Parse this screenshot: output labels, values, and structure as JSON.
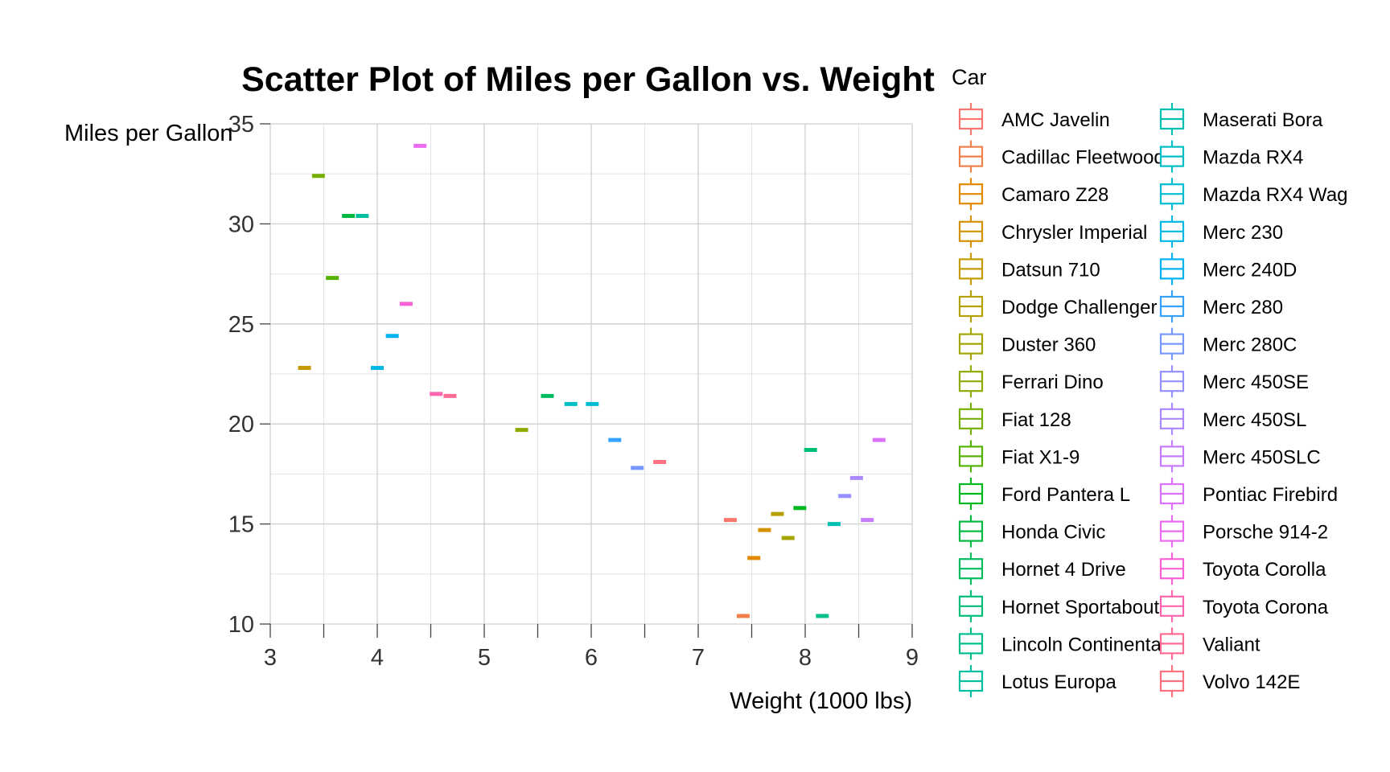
{
  "chart_data": {
    "type": "scatter",
    "title": "Scatter Plot of Miles per Gallon vs. Weight",
    "xlabel": "Weight (1000 lbs)",
    "ylabel": "Miles per Gallon",
    "xlim": [
      3,
      9
    ],
    "ylim": [
      10,
      35
    ],
    "xticks": [
      3,
      4,
      5,
      6,
      7,
      8,
      9
    ],
    "yticks": [
      10,
      15,
      20,
      25,
      30,
      35
    ],
    "grid": true,
    "legend_title": "Car",
    "legend_position": "right",
    "points": [
      {
        "name": "AMC Javelin",
        "x": 7.3,
        "y": 15.2,
        "color": "#F8766D"
      },
      {
        "name": "Cadillac Fleetwood",
        "x": 7.42,
        "y": 10.4,
        "color": "#F07F4A"
      },
      {
        "name": "Camaro Z28",
        "x": 7.52,
        "y": 13.3,
        "color": "#E18A00"
      },
      {
        "name": "Chrysler Imperial",
        "x": 7.62,
        "y": 14.7,
        "color": "#D49200"
      },
      {
        "name": "Datsun 710",
        "x": 3.32,
        "y": 22.8,
        "color": "#C49A00"
      },
      {
        "name": "Dodge Challenger",
        "x": 7.74,
        "y": 15.5,
        "color": "#B4A000"
      },
      {
        "name": "Duster 360",
        "x": 7.84,
        "y": 14.3,
        "color": "#A3A500"
      },
      {
        "name": "Ferrari Dino",
        "x": 5.35,
        "y": 19.7,
        "color": "#8FAA00"
      },
      {
        "name": "Fiat 128",
        "x": 3.45,
        "y": 32.4,
        "color": "#77AF00"
      },
      {
        "name": "Fiat X1-9",
        "x": 3.58,
        "y": 27.3,
        "color": "#55B300"
      },
      {
        "name": "Ford Pantera L",
        "x": 7.95,
        "y": 15.8,
        "color": "#00B81F"
      },
      {
        "name": "Honda Civic",
        "x": 3.73,
        "y": 30.4,
        "color": "#00BA42"
      },
      {
        "name": "Hornet 4 Drive",
        "x": 5.59,
        "y": 21.4,
        "color": "#00BC5E"
      },
      {
        "name": "Hornet Sportabout",
        "x": 8.05,
        "y": 18.7,
        "color": "#00BE77"
      },
      {
        "name": "Lincoln Continental",
        "x": 8.16,
        "y": 10.4,
        "color": "#00BF8C"
      },
      {
        "name": "Lotus Europa",
        "x": 3.86,
        "y": 30.4,
        "color": "#00C0A0"
      },
      {
        "name": "Maserati Bora",
        "x": 8.27,
        "y": 15.0,
        "color": "#00C0B3"
      },
      {
        "name": "Mazda RX4",
        "x": 5.81,
        "y": 21.0,
        "color": "#00BFC4"
      },
      {
        "name": "Mazda RX4 Wag",
        "x": 6.01,
        "y": 21.0,
        "color": "#00BDD4"
      },
      {
        "name": "Merc 230",
        "x": 4.0,
        "y": 22.8,
        "color": "#00B8E3"
      },
      {
        "name": "Merc 240D",
        "x": 4.14,
        "y": 24.4,
        "color": "#00B2F0"
      },
      {
        "name": "Merc 280",
        "x": 6.22,
        "y": 19.2,
        "color": "#35A2FF"
      },
      {
        "name": "Merc 280C",
        "x": 6.43,
        "y": 17.8,
        "color": "#7998FF"
      },
      {
        "name": "Merc 450SE",
        "x": 8.37,
        "y": 16.4,
        "color": "#9590FF"
      },
      {
        "name": "Merc 450SL",
        "x": 8.48,
        "y": 17.3,
        "color": "#AC88FF"
      },
      {
        "name": "Merc 450SLC",
        "x": 8.58,
        "y": 15.2,
        "color": "#C77CFF"
      },
      {
        "name": "Pontiac Firebird",
        "x": 8.69,
        "y": 19.2,
        "color": "#DC71FA"
      },
      {
        "name": "Porsche 914-2",
        "x": 4.4,
        "y": 33.9,
        "color": "#EA6AF0"
      },
      {
        "name": "Toyota Corolla",
        "x": 4.27,
        "y": 26.0,
        "color": "#FB61D7"
      },
      {
        "name": "Toyota Corona",
        "x": 4.55,
        "y": 21.5,
        "color": "#FF64B0"
      },
      {
        "name": "Valiant",
        "x": 4.68,
        "y": 21.4,
        "color": "#FF6B93"
      },
      {
        "name": "Volvo 142E",
        "x": 6.64,
        "y": 18.1,
        "color": "#FC717F"
      }
    ]
  }
}
